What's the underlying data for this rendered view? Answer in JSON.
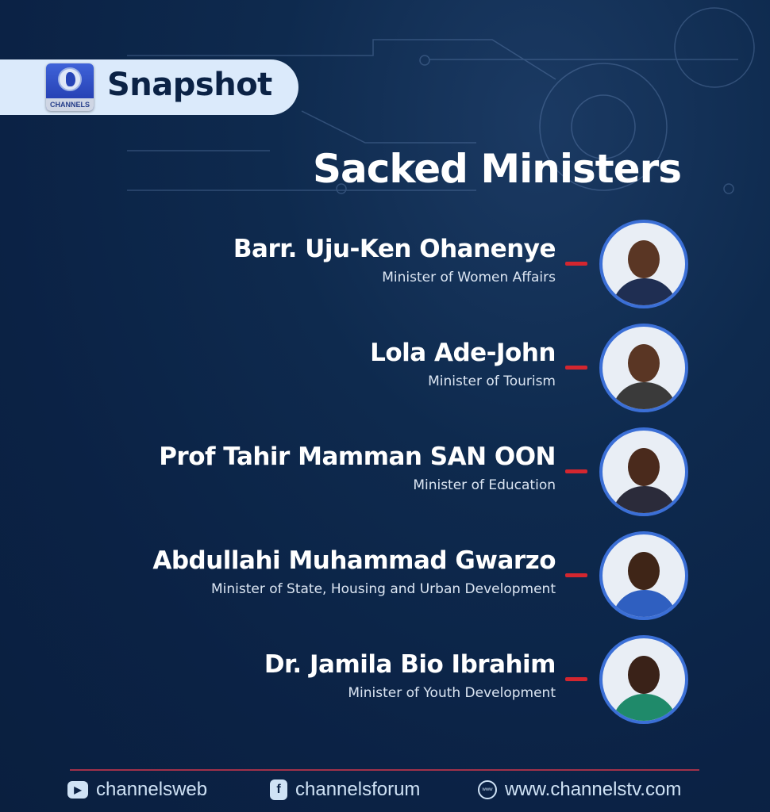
{
  "header": {
    "logo_text": "CHANNELS",
    "label": "Snapshot"
  },
  "title": "Sacked Ministers",
  "ministers": [
    {
      "name": "Barr. Uju-Ken Ohanenye",
      "role": "Minister of Women Affairs"
    },
    {
      "name": "Lola Ade-John",
      "role": "Minister of Tourism"
    },
    {
      "name": "Prof Tahir Mamman SAN OON",
      "role": "Minister of Education"
    },
    {
      "name": "Abdullahi Muhammad Gwarzo",
      "role": "Minister of State, Housing and Urban Development"
    },
    {
      "name": "Dr. Jamila Bio Ibrahim",
      "role": "Minister of Youth Development"
    }
  ],
  "footer": {
    "youtube": "channelsweb",
    "facebook": "channelsforum",
    "website": "www.channelstv.com",
    "www_icon_text": "www"
  },
  "colors": {
    "background": "#0b2245",
    "accent_red": "#d3262f",
    "ring_blue": "#3b6fd6",
    "pill": "#dbeafb"
  }
}
